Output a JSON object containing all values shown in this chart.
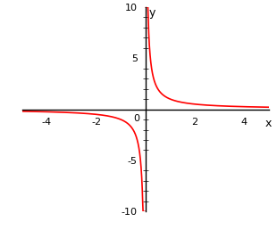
{
  "title": "",
  "xlabel": "x",
  "ylabel": "y",
  "xlim": [
    -5.2,
    5.2
  ],
  "ylim": [
    -10.5,
    10.5
  ],
  "plot_xlim": [
    -5,
    5
  ],
  "plot_ylim": [
    -10,
    10
  ],
  "xticks": [
    -4,
    -3,
    -2,
    -1,
    1,
    2,
    3,
    4
  ],
  "xtick_labels": [
    -4,
    -2,
    2,
    4
  ],
  "yticks": [
    -10,
    -5,
    5,
    10
  ],
  "line_color": "#ff0000",
  "line_width": 1.2,
  "bg_color": "#ffffff",
  "clip_val": 10,
  "figsize": [
    3.1,
    2.58
  ],
  "dpi": 100
}
